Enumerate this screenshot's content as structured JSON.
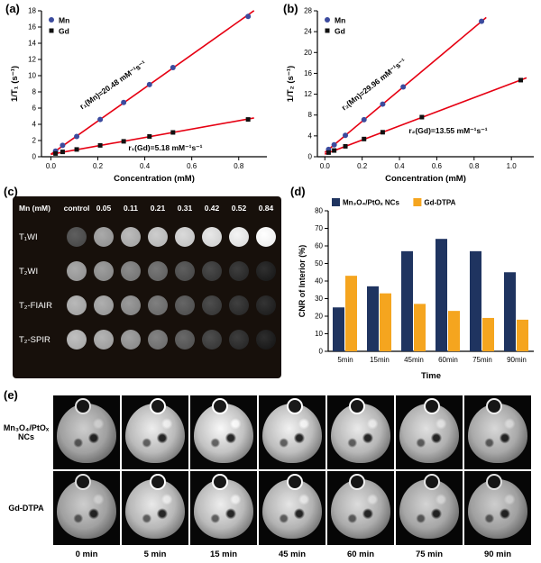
{
  "labels": {
    "a": "(a)",
    "b": "(b)",
    "c": "(c)",
    "d": "(d)",
    "e": "(e)"
  },
  "chart_data": [
    {
      "id": "a",
      "type": "scatter",
      "xlabel": "Concentration (mM)",
      "ylabel": "1/T₁ (s⁻¹)",
      "xlim": [
        -0.04,
        0.92
      ],
      "ylim": [
        0,
        18
      ],
      "xticks": [
        0.0,
        0.2,
        0.4,
        0.6,
        0.8
      ],
      "yticks": [
        0,
        2,
        4,
        6,
        8,
        10,
        12,
        14,
        16,
        18
      ],
      "legend_position": "top-left",
      "series": [
        {
          "name": "Mn",
          "color": "#3c4b9e",
          "marker": "circle",
          "x": [
            0.02,
            0.05,
            0.11,
            0.21,
            0.31,
            0.42,
            0.52,
            0.84
          ],
          "y": [
            0.7,
            1.4,
            2.5,
            4.6,
            6.7,
            8.9,
            11.0,
            17.3
          ],
          "fit": {
            "slope": 20.48,
            "intercept": 0.3,
            "color": "#e60012"
          }
        },
        {
          "name": "Gd",
          "color": "#111111",
          "marker": "square",
          "x": [
            0.02,
            0.05,
            0.11,
            0.21,
            0.31,
            0.42,
            0.52,
            0.84
          ],
          "y": [
            0.4,
            0.6,
            0.9,
            1.4,
            1.9,
            2.5,
            3.0,
            4.6
          ],
          "fit": {
            "slope": 5.18,
            "intercept": 0.3,
            "color": "#e60012"
          }
        }
      ],
      "annotations": [
        {
          "text": "r₁(Mn)=20.48 mM⁻¹s⁻¹",
          "x": 0.27,
          "y": 8.6,
          "angle": -35,
          "anchor": "middle"
        },
        {
          "text": "r₁(Gd)=5.18 mM⁻¹s⁻¹",
          "x": 0.33,
          "y": 0.8,
          "angle": 0,
          "anchor": "start"
        }
      ]
    },
    {
      "id": "b",
      "type": "scatter",
      "xlabel": "Concentration (mM)",
      "ylabel": "1/T₂ (s⁻¹)",
      "xlim": [
        -0.04,
        1.12
      ],
      "ylim": [
        0,
        28
      ],
      "xticks": [
        0.0,
        0.2,
        0.4,
        0.6,
        0.8,
        1.0
      ],
      "yticks": [
        0,
        4,
        8,
        12,
        16,
        20,
        24,
        28
      ],
      "legend_position": "top-left",
      "series": [
        {
          "name": "Mn",
          "color": "#3c4b9e",
          "marker": "circle",
          "x": [
            0.02,
            0.05,
            0.11,
            0.21,
            0.31,
            0.42,
            0.84
          ],
          "y": [
            1.4,
            2.3,
            4.1,
            7.1,
            10.1,
            13.4,
            26.0
          ],
          "fit": {
            "slope": 29.96,
            "intercept": 0.8,
            "color": "#e60012"
          }
        },
        {
          "name": "Gd",
          "color": "#111111",
          "marker": "square",
          "x": [
            0.02,
            0.05,
            0.11,
            0.21,
            0.31,
            0.52,
            1.05
          ],
          "y": [
            0.8,
            1.2,
            2.0,
            3.4,
            4.7,
            7.6,
            14.7
          ],
          "fit": {
            "slope": 13.55,
            "intercept": 0.5,
            "color": "#e60012"
          }
        }
      ],
      "annotations": [
        {
          "text": "r₂(Mn)=29.96 mM⁻¹s⁻¹",
          "x": 0.27,
          "y": 13.5,
          "angle": -38,
          "anchor": "middle"
        },
        {
          "text": "r₂(Gd)=13.55 mM⁻¹s⁻¹",
          "x": 0.45,
          "y": 4.5,
          "angle": 0,
          "anchor": "start"
        }
      ]
    },
    {
      "id": "d",
      "type": "bar",
      "categories": [
        "5min",
        "15min",
        "45min",
        "60min",
        "75min",
        "90min"
      ],
      "series": [
        {
          "name": "Mn₃O₄/PtOₓ NCs",
          "color": "#1f3460",
          "values": [
            25,
            37,
            57,
            64,
            57,
            45
          ]
        },
        {
          "name": "Gd-DTPA",
          "color": "#f5a51f",
          "values": [
            43,
            33,
            27,
            23,
            19,
            18
          ]
        }
      ],
      "ylabel": "CNR of Interior (%)",
      "xlabel": "Time",
      "ylim": [
        0,
        80
      ],
      "yticks": [
        0,
        10,
        20,
        30,
        40,
        50,
        60,
        70,
        80
      ],
      "legend_position": "top-inside"
    }
  ],
  "panel_c": {
    "header": [
      "Mn (mM)",
      "control",
      "0.05",
      "0.11",
      "0.21",
      "0.31",
      "0.42",
      "0.52",
      "0.84"
    ],
    "rows": [
      {
        "label": "T₁WI",
        "gray": [
          75,
          150,
          168,
          185,
          198,
          212,
          224,
          240
        ]
      },
      {
        "label": "T₂WI",
        "gray": [
          150,
          138,
          120,
          100,
          75,
          55,
          42,
          28
        ]
      },
      {
        "label": "T₂-FIAIR",
        "gray": [
          165,
          155,
          135,
          108,
          82,
          58,
          44,
          32
        ]
      },
      {
        "label": "T₂-SPIR",
        "gray": [
          172,
          160,
          142,
          112,
          85,
          58,
          42,
          26
        ]
      }
    ]
  },
  "panel_e": {
    "row_labels": [
      "Mn₃O₄/PtOₓ NCs",
      "Gd-DTPA"
    ],
    "col_labels": [
      "0 min",
      "5 min",
      "15 min",
      "45 min",
      "60 min",
      "75 min",
      "90 min"
    ],
    "brightness": [
      [
        0.95,
        1.1,
        1.15,
        1.12,
        1.08,
        1.04,
        1.0
      ],
      [
        0.95,
        1.08,
        1.1,
        1.06,
        1.02,
        0.98,
        0.95
      ]
    ]
  }
}
